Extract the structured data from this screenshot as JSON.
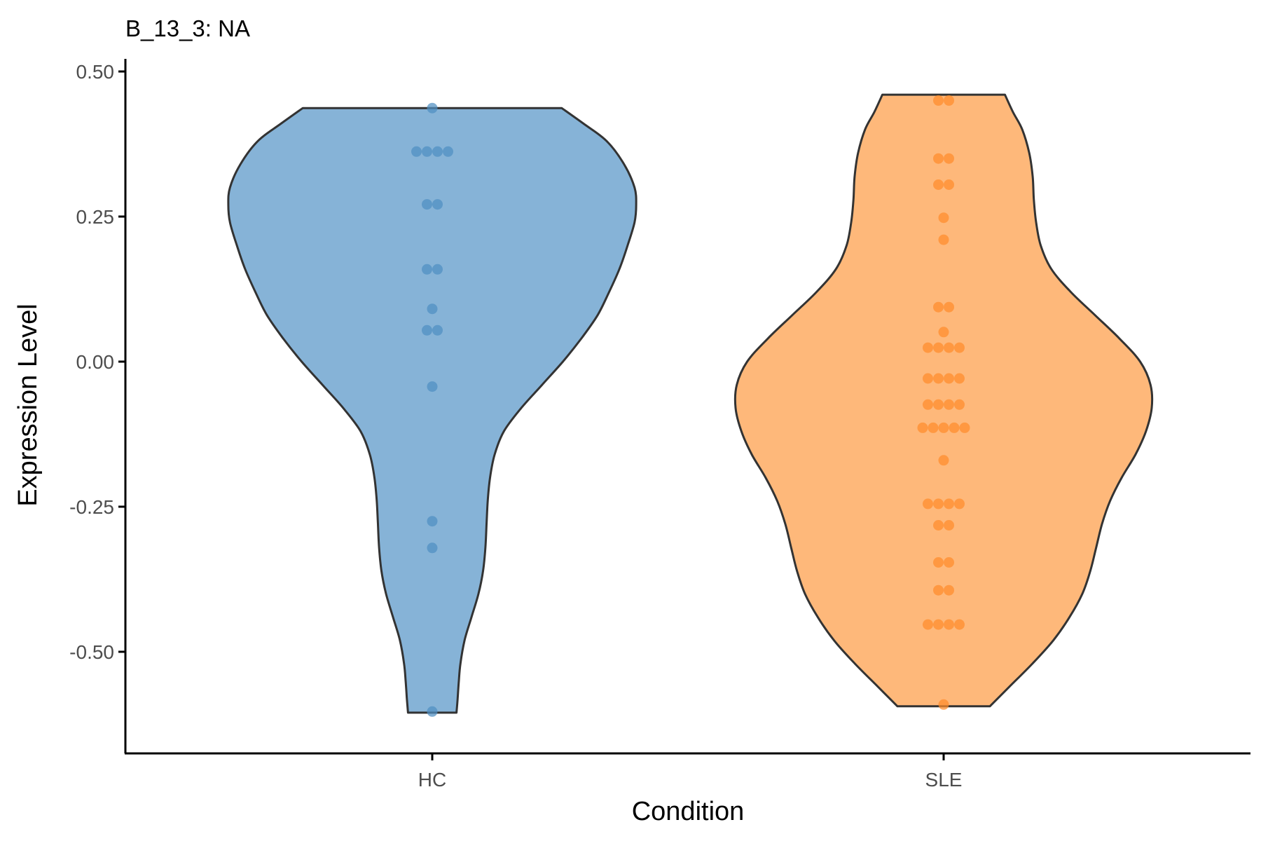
{
  "chart_data": {
    "type": "violin",
    "title": "B_13_3: NA",
    "xlabel": "Condition",
    "ylabel": "Expression Level",
    "ylim": [
      -0.67,
      0.52
    ],
    "y_ticks": [
      -0.5,
      -0.25,
      0.0,
      0.25,
      0.5
    ],
    "y_tick_labels": [
      "-0.50",
      "-0.25",
      "0.00",
      "0.25",
      "0.50"
    ],
    "categories": [
      "HC",
      "SLE"
    ],
    "series": [
      {
        "name": "HC",
        "color": "#4F8FC2",
        "fill": "#86B3D7",
        "range": [
          -0.605,
          0.437
        ],
        "points": [
          {
            "y": 0.437,
            "n": 1
          },
          {
            "y": 0.362,
            "n": 4
          },
          {
            "y": 0.271,
            "n": 2
          },
          {
            "y": 0.159,
            "n": 2
          },
          {
            "y": 0.091,
            "n": 1
          },
          {
            "y": 0.054,
            "n": 2
          },
          {
            "y": -0.043,
            "n": 1
          },
          {
            "y": -0.275,
            "n": 1
          },
          {
            "y": -0.321,
            "n": 1
          },
          {
            "y": -0.603,
            "n": 1
          }
        ],
        "density": [
          [
            -0.605,
            0.105
          ],
          [
            -0.58,
            0.11
          ],
          [
            -0.55,
            0.115
          ],
          [
            -0.52,
            0.122
          ],
          [
            -0.48,
            0.14
          ],
          [
            -0.44,
            0.17
          ],
          [
            -0.4,
            0.2
          ],
          [
            -0.36,
            0.22
          ],
          [
            -0.32,
            0.23
          ],
          [
            -0.28,
            0.235
          ],
          [
            -0.24,
            0.24
          ],
          [
            -0.2,
            0.25
          ],
          [
            -0.16,
            0.27
          ],
          [
            -0.12,
            0.31
          ],
          [
            -0.08,
            0.385
          ],
          [
            -0.04,
            0.475
          ],
          [
            0.0,
            0.565
          ],
          [
            0.04,
            0.645
          ],
          [
            0.08,
            0.715
          ],
          [
            0.12,
            0.765
          ],
          [
            0.16,
            0.81
          ],
          [
            0.2,
            0.845
          ],
          [
            0.24,
            0.875
          ],
          [
            0.27,
            0.882
          ],
          [
            0.3,
            0.875
          ],
          [
            0.34,
            0.83
          ],
          [
            0.38,
            0.755
          ],
          [
            0.41,
            0.655
          ],
          [
            0.437,
            0.56
          ]
        ]
      },
      {
        "name": "SLE",
        "color": "#FF8C2B",
        "fill": "#FEB87A",
        "range": [
          -0.594,
          0.46
        ],
        "points": [
          {
            "y": 0.45,
            "n": 2
          },
          {
            "y": 0.35,
            "n": 2
          },
          {
            "y": 0.305,
            "n": 2
          },
          {
            "y": 0.248,
            "n": 1
          },
          {
            "y": 0.21,
            "n": 1
          },
          {
            "y": 0.094,
            "n": 2
          },
          {
            "y": 0.051,
            "n": 1
          },
          {
            "y": 0.024,
            "n": 4
          },
          {
            "y": -0.029,
            "n": 4
          },
          {
            "y": -0.074,
            "n": 4
          },
          {
            "y": -0.114,
            "n": 5
          },
          {
            "y": -0.17,
            "n": 1
          },
          {
            "y": -0.245,
            "n": 4
          },
          {
            "y": -0.282,
            "n": 2
          },
          {
            "y": -0.346,
            "n": 2
          },
          {
            "y": -0.394,
            "n": 2
          },
          {
            "y": -0.453,
            "n": 4
          },
          {
            "y": -0.591,
            "n": 1
          }
        ],
        "density": [
          [
            -0.594,
            0.2
          ],
          [
            -0.56,
            0.285
          ],
          [
            -0.52,
            0.385
          ],
          [
            -0.48,
            0.475
          ],
          [
            -0.44,
            0.545
          ],
          [
            -0.4,
            0.6
          ],
          [
            -0.36,
            0.635
          ],
          [
            -0.32,
            0.66
          ],
          [
            -0.28,
            0.685
          ],
          [
            -0.24,
            0.72
          ],
          [
            -0.2,
            0.77
          ],
          [
            -0.16,
            0.83
          ],
          [
            -0.12,
            0.875
          ],
          [
            -0.08,
            0.9
          ],
          [
            -0.04,
            0.895
          ],
          [
            0.0,
            0.85
          ],
          [
            0.04,
            0.76
          ],
          [
            0.08,
            0.655
          ],
          [
            0.12,
            0.55
          ],
          [
            0.16,
            0.465
          ],
          [
            0.2,
            0.42
          ],
          [
            0.24,
            0.4
          ],
          [
            0.28,
            0.39
          ],
          [
            0.32,
            0.385
          ],
          [
            0.36,
            0.37
          ],
          [
            0.4,
            0.34
          ],
          [
            0.43,
            0.3
          ],
          [
            0.46,
            0.265
          ]
        ]
      }
    ]
  }
}
